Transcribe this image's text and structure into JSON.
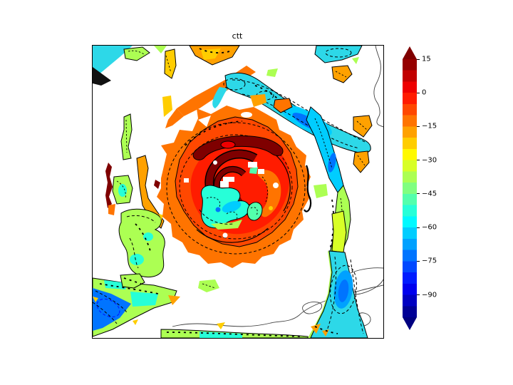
{
  "chart_data": {
    "type": "contour",
    "title": "ctt",
    "subtitle": "",
    "xlabel": "",
    "ylabel": "",
    "colormap": "jet",
    "field": "cloud top temperature (filled contours with solid and dashed black contour lines over map coastlines)",
    "levels_range": [
      -100,
      15
    ],
    "level_step": 5,
    "grid": false,
    "legend_position": "colorbar-right",
    "colorbar": {
      "ticks": [
        15,
        0,
        -15,
        -30,
        -45,
        -60,
        -75,
        -90
      ],
      "tick_labels": [
        "15",
        "0",
        "−15",
        "−30",
        "−45",
        "−60",
        "−75",
        "−90"
      ],
      "vmin": -100,
      "vmax": 15,
      "extend": "both",
      "over_color": "#800000",
      "under_color": "#000080",
      "segment_colors_top_to_bottom": [
        "#960000",
        "#c20000",
        "#ee0000",
        "#ff1c00",
        "#ff4800",
        "#ff7400",
        "#ffa100",
        "#ffcd00",
        "#fff900",
        "#d8ff27",
        "#acff53",
        "#80ff80",
        "#53ffac",
        "#27ffd8",
        "#00f9ff",
        "#00cdff",
        "#00a1ff",
        "#0074ff",
        "#0048ff",
        "#001cff",
        "#0000ee",
        "#0000c2",
        "#000096"
      ]
    },
    "features": [
      "tropical cyclone with warm (orange/red, ~0 to 15) central overcast and dark-red eyewall rings",
      "cold (cyan/blue, ~-55 to -75) overshooting tops in storm core",
      "cyan-blue cold cloud band arcing across upper-center to the east",
      "green/cyan spiral rainbands southwest and south of the center",
      "blue cold band in lower-left corner and cyan band at bottom-center-right",
      "scattered orange and yellow-green cloud patches; white = no cloud / masked",
      "thin gray coastlines at right edge and lower right"
    ]
  },
  "palette": {
    "dark_red": "#960000",
    "maroon": "#7f0000",
    "red": "#ee0000",
    "red_orange": "#ff1c00",
    "orange_red": "#ff4800",
    "orange": "#ff7400",
    "amber": "#ffa100",
    "gold": "#ffcd00",
    "yellow": "#fff900",
    "yellow_green": "#d8ff27",
    "green": "#acff53",
    "light_green": "#80ff80",
    "teal": "#53ffac",
    "aqua": "#27ffd8",
    "turquoise": "#2dd8e8",
    "cyan": "#00f9ff",
    "sky": "#00cdff",
    "light_blue": "#00a1ff",
    "blue": "#0074ff",
    "mid_blue": "#0048ff",
    "deep_blue": "#001cff",
    "navy": "#0000c2",
    "dark_blue": "#000096",
    "black": "#000000",
    "coastline": "#404040",
    "background": "#ffffff"
  }
}
